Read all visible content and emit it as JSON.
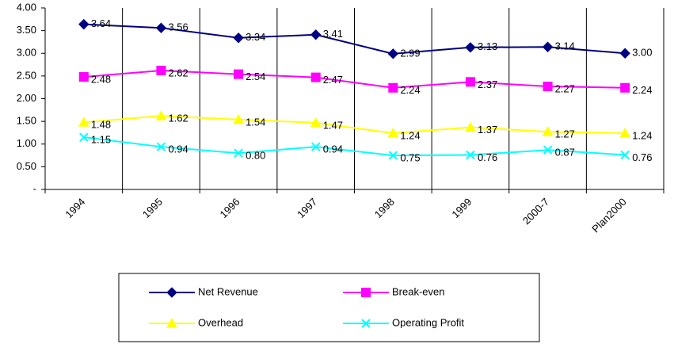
{
  "chart_data": {
    "type": "line",
    "categories": [
      "1994",
      "1995",
      "1996",
      "1997",
      "1998",
      "1999",
      "2000-7",
      "Plan2000"
    ],
    "series": [
      {
        "name": "Net Revenue",
        "color": "#000080",
        "marker": "diamond",
        "values": [
          3.64,
          3.56,
          3.34,
          3.41,
          2.99,
          3.13,
          3.14,
          3.0
        ],
        "value_labels": [
          "3.64",
          "3.56",
          "3.34",
          "3.41",
          "2.99",
          "3.13",
          "3.14",
          "3.00"
        ]
      },
      {
        "name": "Break-even",
        "color": "#ff00ff",
        "marker": "square",
        "values": [
          2.48,
          2.62,
          2.54,
          2.47,
          2.24,
          2.37,
          2.27,
          2.24
        ],
        "value_labels": [
          "2.48",
          "2.62",
          "2.54",
          "2.47",
          "2.24",
          "2.37",
          "2.27",
          "2.24"
        ]
      },
      {
        "name": "Overhead",
        "color": "#ffff00",
        "marker": "triangle",
        "values": [
          1.48,
          1.62,
          1.54,
          1.47,
          1.24,
          1.37,
          1.27,
          1.24
        ],
        "value_labels": [
          "1.48",
          "1.62",
          "1.54",
          "1.47",
          "1.24",
          "1.37",
          "1.27",
          "1.24"
        ]
      },
      {
        "name": "Operating Profit",
        "color": "#00ffff",
        "marker": "x",
        "values": [
          1.15,
          0.94,
          0.8,
          0.94,
          0.75,
          0.76,
          0.87,
          0.76
        ],
        "value_labels": [
          "1.15",
          "0.94",
          "0.80",
          "0.94",
          "0.75",
          "0.76",
          "0.87",
          "0.76"
        ]
      }
    ],
    "ylim": [
      0,
      4
    ],
    "yticks": [
      {
        "value": 0,
        "label": "-"
      },
      {
        "value": 0.5,
        "label": "0.50"
      },
      {
        "value": 1,
        "label": "1.00"
      },
      {
        "value": 1.5,
        "label": "1.50"
      },
      {
        "value": 2,
        "label": "2.00"
      },
      {
        "value": 2.5,
        "label": "2.50"
      },
      {
        "value": 3,
        "label": "3.00"
      },
      {
        "value": 3.5,
        "label": "3.50"
      },
      {
        "value": 4,
        "label": "4.00"
      }
    ],
    "legend": "bottom"
  }
}
